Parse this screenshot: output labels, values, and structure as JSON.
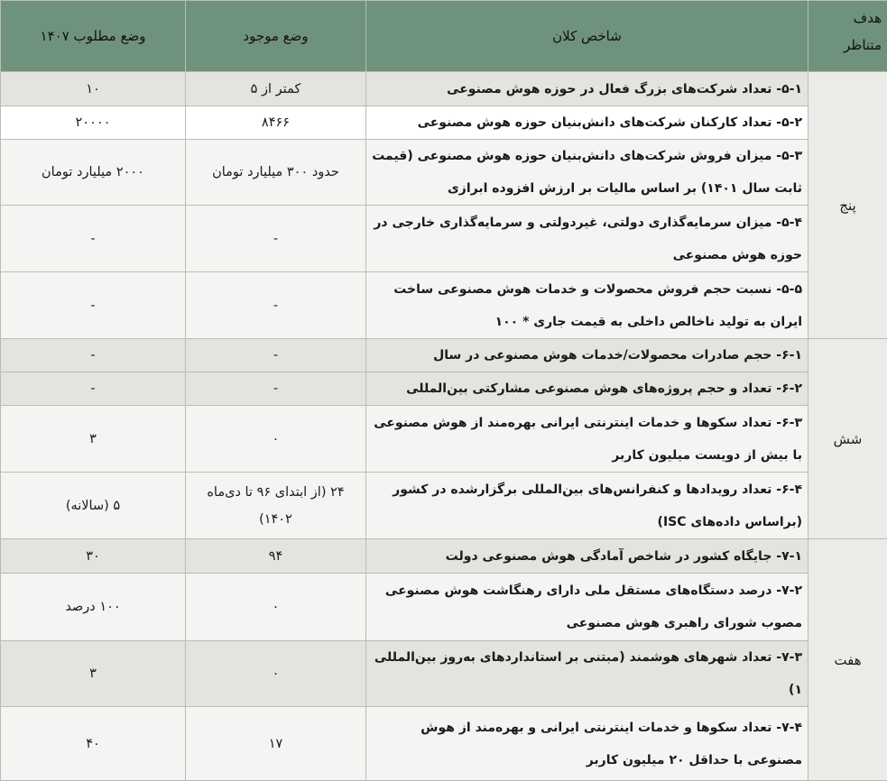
{
  "header": {
    "goal": "هدف متناظر",
    "indicator": "شاخص کلان",
    "current": "وضع موجود",
    "desired": "وضع مطلوب ۱۴۰۷"
  },
  "groups": [
    {
      "goal": "پنج",
      "rows": [
        {
          "indicator": "۵-۱- تعداد شرکت‌های بزرگ فعال در حوزه هوش مصنوعی",
          "current": "کمتر از ۵",
          "desired": "۱۰",
          "shade": "gray"
        },
        {
          "indicator": "۵-۲- تعداد کارکنان شرکت‌های دانش‌بنیان حوزه هوش مصنوعی",
          "current": "۸۴۶۶",
          "desired": "۲۰۰۰۰",
          "shade": "white"
        },
        {
          "indicator": "۵-۳- میزان فروش شرکت‌های دانش‌بنیان حوزه هوش مصنوعی (قیمت ثابت سال ۱۴۰۱) بر اساس مالیات بر ارزش افزوده ابرازی",
          "current": "حدود ۳۰۰ میلیارد تومان",
          "desired": "۲۰۰۰ میلیارد تومان",
          "shade": "light"
        },
        {
          "indicator": "۵-۴- میزان سرمایه‌گذاری دولتی، غیردولتی و سرمایه‌گذاری خارجی در حوزه هوش مصنوعی",
          "current": "-",
          "desired": "-",
          "shade": "light"
        },
        {
          "indicator": "۵-۵- نسبت حجم فروش محصولات و خدمات هوش مصنوعی ساخت ایران به تولید ناخالص داخلی به قیمت جاری * ۱۰۰",
          "current": "-",
          "desired": "-",
          "shade": "light"
        }
      ]
    },
    {
      "goal": "شش",
      "rows": [
        {
          "indicator": "۶-۱- حجم صادرات محصولات/خدمات هوش مصنوعی در سال",
          "current": "-",
          "desired": "-",
          "shade": "gray"
        },
        {
          "indicator": "۶-۲- تعداد و حجم پروژه‌های هوش مصنوعی مشارکتی بین‌المللی",
          "current": "-",
          "desired": "-",
          "shade": "gray"
        },
        {
          "indicator": "۶-۳- تعداد سکوها و خدمات اینترنتی ایرانی بهره‌مند از هوش مصنوعی با بیش از دویست میلیون کاربر",
          "current": "۰",
          "desired": "۳",
          "shade": "light"
        },
        {
          "indicator": "۶-۴- تعداد رویدادها و کنفرانس‌های بین‌المللی برگزارشده در کشور (براساس داده‌های ISC)",
          "current": "۲۴ (از ابتدای ۹۶ تا دی‌ماه ۱۴۰۲)",
          "desired": "۵ (سالانه)",
          "shade": "light"
        }
      ]
    },
    {
      "goal": "هفت",
      "rows": [
        {
          "indicator": "۷-۱- جایگاه کشور در شاخص آمادگی هوش مصنوعی دولت",
          "current": "۹۴",
          "desired": "۳۰",
          "shade": "gray"
        },
        {
          "indicator": "۷-۲- درصد دستگاه‌های مستقل ملی دارای رهنگاشت هوش مصنوعی مصوب شورای راهبری هوش مصنوعی",
          "current": "۰",
          "desired": "۱۰۰ درصد",
          "shade": "light"
        },
        {
          "indicator": "۷-۳- تعداد شهرهای هوشمند (مبتنی بر استانداردهای به‌روز بین‌المللی ۱)",
          "current": "۰",
          "desired": "۳",
          "shade": "gray"
        },
        {
          "indicator": "۷-۴- تعداد سکوها و خدمات اینترنتی ایرانی و بهره‌مند از هوش مصنوعی با حداقل ۲۰ میلیون کاربر",
          "current": "۱۷",
          "desired": "۴۰",
          "shade": "light"
        }
      ]
    }
  ]
}
